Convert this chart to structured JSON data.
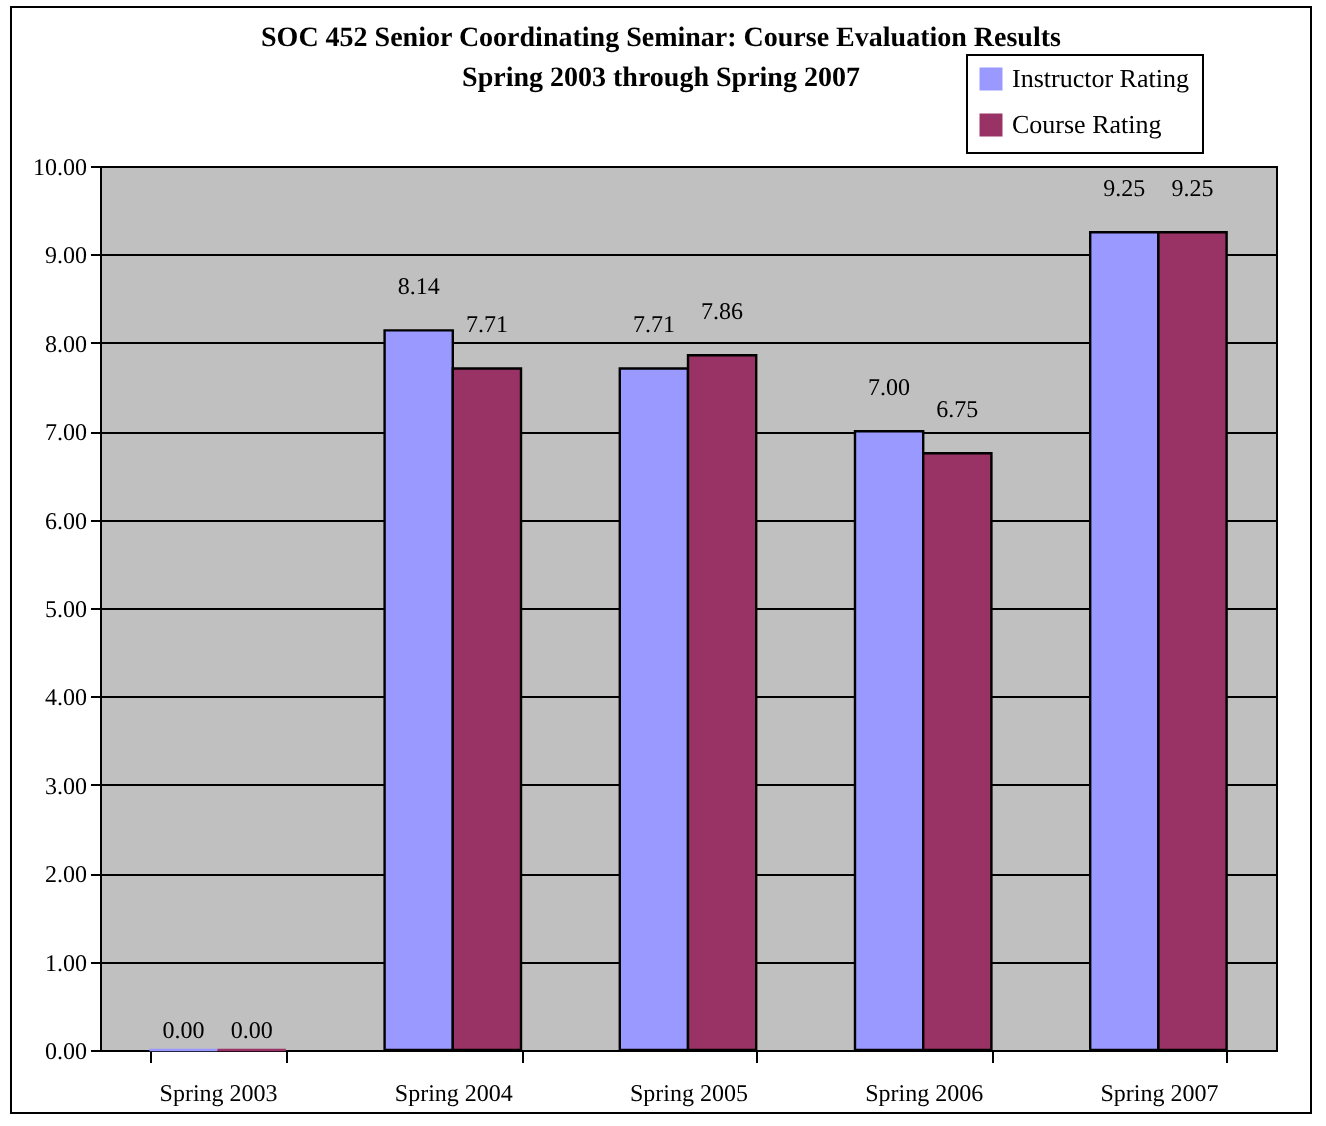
{
  "chart_data": {
    "type": "bar",
    "title": "SOC 452 Senior Coordinating Seminar: Course Evaluation Results",
    "subtitle": "Spring 2003 through Spring 2007",
    "categories": [
      "Spring 2003",
      "Spring 2004",
      "Spring 2005",
      "Spring 2006",
      "Spring 2007"
    ],
    "series": [
      {
        "name": "Instructor Rating",
        "color": "#9999ff",
        "values": [
          0,
          8.14,
          7.71,
          7.0,
          9.25
        ],
        "value_labels": [
          "0.00",
          "8.14",
          "7.71",
          "7.00",
          "9.25"
        ]
      },
      {
        "name": "Course Rating",
        "color": "#993366",
        "values": [
          0,
          7.71,
          7.86,
          6.75,
          9.25
        ],
        "value_labels": [
          "0.00",
          "7.71",
          "7.86",
          "6.75",
          "9.25"
        ]
      }
    ],
    "ylim": [
      0,
      10
    ],
    "yticks": [
      {
        "value": 0,
        "label": "0.00"
      },
      {
        "value": 1,
        "label": "1.00"
      },
      {
        "value": 2,
        "label": "2.00"
      },
      {
        "value": 3,
        "label": "3.00"
      },
      {
        "value": 4,
        "label": "4.00"
      },
      {
        "value": 5,
        "label": "5.00"
      },
      {
        "value": 6,
        "label": "6.00"
      },
      {
        "value": 7,
        "label": "7.00"
      },
      {
        "value": 8,
        "label": "8.00"
      },
      {
        "value": 9,
        "label": "9.00"
      },
      {
        "value": 10,
        "label": "10.00"
      }
    ],
    "grid": "y",
    "legend": "top right"
  }
}
